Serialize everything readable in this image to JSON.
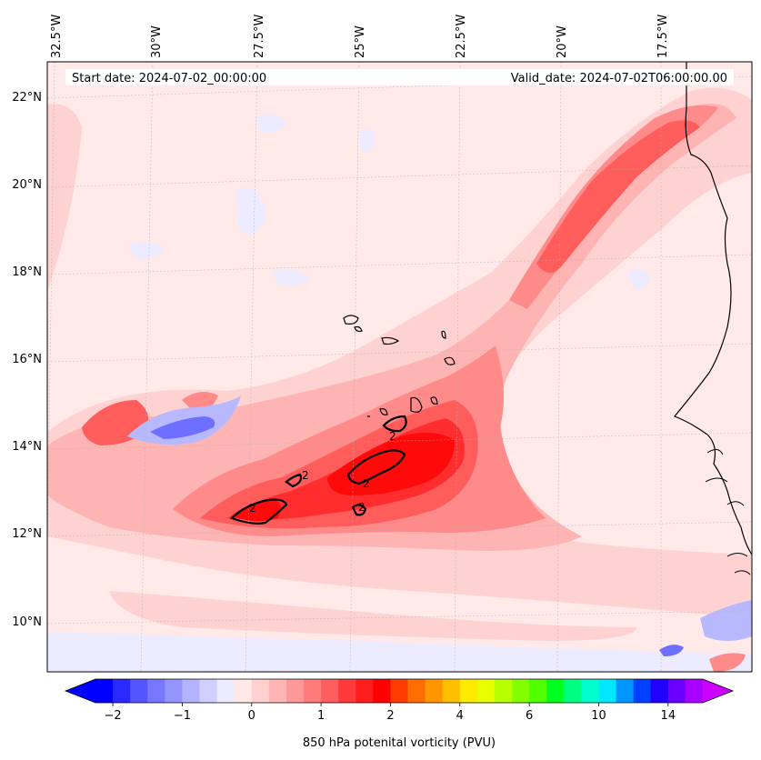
{
  "map": {
    "start_date": "Start date: 2024-07-02_00:00:00",
    "valid_date": "Valid_date: 2024-07-02T06:00:00.00",
    "lon_labels": [
      "32.5°W",
      "30°W",
      "27.5°W",
      "25°W",
      "22.5°W",
      "20°W",
      "17.5°W"
    ],
    "lat_labels": [
      "22°N",
      "20°N",
      "18°N",
      "16°N",
      "14°N",
      "12°N",
      "10°N"
    ],
    "contour_level_label": "2",
    "colorbar": {
      "label": "850 hPa potenital vorticity (PVU)",
      "tick_labels": [
        "−2",
        "−1",
        "0",
        "1",
        "2",
        "4",
        "6",
        "10",
        "14"
      ],
      "colors": [
        "#0000ff",
        "#2a2aff",
        "#5555ff",
        "#7777ff",
        "#9595ff",
        "#b3b3ff",
        "#d0d0ff",
        "#ecebff",
        "#ffe8e8",
        "#ffd0d0",
        "#ffb5b5",
        "#ff9898",
        "#ff7b7b",
        "#ff5e5e",
        "#ff3a3a",
        "#ff1e1e",
        "#ff0000",
        "#ff3c00",
        "#ff6e00",
        "#ff9600",
        "#ffbe00",
        "#ffeb00",
        "#e8ff00",
        "#b8ff00",
        "#84ff00",
        "#50ff00",
        "#00ff1e",
        "#00ff80",
        "#00ffcc",
        "#00e8ff",
        "#0096ff",
        "#0040ff",
        "#2000ff",
        "#6a00ff",
        "#aa00ff"
      ],
      "under_color": "#0000ff",
      "over_color": "#cc00ff"
    },
    "field_colors": {
      "background": "#ffe9e9",
      "pink1": "#ffd2d2",
      "pink2": "#ffb4b4",
      "red1": "#ff8a8a",
      "red2": "#ff5c5c",
      "red3": "#ff2d2d",
      "red4": "#ff0a0a",
      "blue1": "#ecebff",
      "blue2": "#b8b8ff",
      "blue3": "#6f6fff"
    }
  }
}
